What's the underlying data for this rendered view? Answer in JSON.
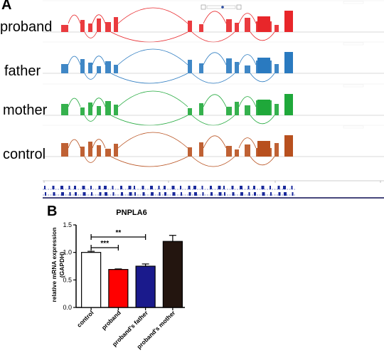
{
  "panel_a": {
    "letter": "A",
    "samples": [
      {
        "label": "proband",
        "color": "#e8262a"
      },
      {
        "label": "father",
        "color": "#2a7ac0"
      },
      {
        "label": "mother",
        "color": "#1fa83a"
      },
      {
        "label": "control",
        "color": "#b8501e"
      }
    ],
    "gene_track_color": "#1a2a9c"
  },
  "panel_b": {
    "letter": "B",
    "chart_data": {
      "type": "bar",
      "title": "PNPLA6",
      "ylabel": "relative mRNA expression\n(GAPDH)",
      "ylim": [
        0,
        1.5
      ],
      "yticks": [
        "0.0",
        "0.5",
        "1.0",
        "1.5"
      ],
      "categories": [
        "control",
        "proband",
        "proband's father",
        "proband's mother"
      ],
      "values": [
        1.0,
        0.69,
        0.75,
        1.2
      ],
      "errors": [
        0.02,
        0.01,
        0.04,
        0.11
      ],
      "colors": [
        "#ffffff",
        "#ff0000",
        "#1a1a8c",
        "#23150f"
      ],
      "annotations": [
        {
          "from": "control",
          "to": "proband",
          "text": "***"
        },
        {
          "from": "control",
          "to": "proband's father",
          "text": "**"
        }
      ]
    }
  }
}
